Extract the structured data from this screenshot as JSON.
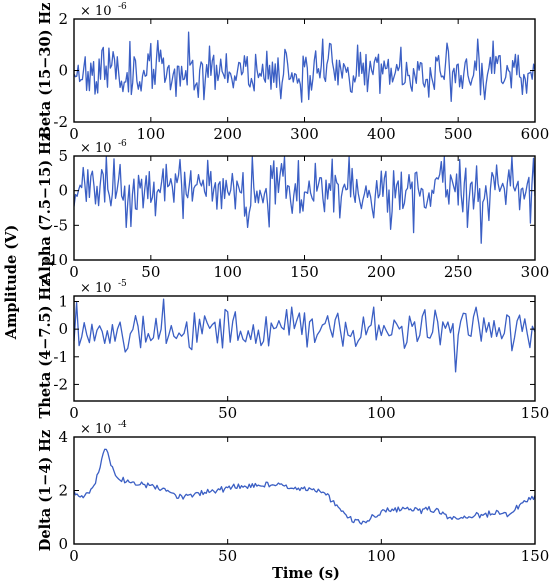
{
  "figure": {
    "ylabel": "Amplitude (V)",
    "xlabel": "Time (s)"
  },
  "chart_data": [
    {
      "type": "line",
      "ylabel": "Beta (15−30) Hz",
      "exponent_base": "× 10",
      "exponent_power": "-6",
      "xlim": [
        0,
        600
      ],
      "ylim": [
        -2,
        2
      ],
      "xticks": [
        "0",
        "100",
        "200",
        "300",
        "400",
        "500",
        "600"
      ],
      "yticks": [
        "-2",
        "0",
        "2"
      ],
      "grid": false,
      "series_color": "#3b5fc4",
      "kind": "noise",
      "points": 330,
      "amplitude": 0.75,
      "seed": 11
    },
    {
      "type": "line",
      "ylabel": "Alpha (7.5−15) Hz",
      "exponent_base": "× 10",
      "exponent_power": "-6",
      "xlim": [
        0,
        300
      ],
      "ylim": [
        -10,
        5
      ],
      "xticks": [
        "0",
        "50",
        "100",
        "150",
        "200",
        "250",
        "300"
      ],
      "yticks": [
        "-10",
        "-5",
        "0",
        "5"
      ],
      "grid": false,
      "series_color": "#3b5fc4",
      "kind": "noise",
      "points": 300,
      "amplitude": 3.2,
      "seed": 23
    },
    {
      "type": "line",
      "ylabel": "Theta (4−7.5) Hz",
      "exponent_base": "× 10",
      "exponent_power": "-5",
      "xlim": [
        0,
        150
      ],
      "ylim": [
        -2.6,
        1.2
      ],
      "xticks": [
        "0",
        "50",
        "100",
        "150"
      ],
      "yticks": [
        "-2",
        "-1",
        "0",
        "1"
      ],
      "grid": false,
      "series_color": "#3b5fc4",
      "kind": "noise",
      "points": 180,
      "amplitude": 0.6,
      "seed": 37
    },
    {
      "type": "line",
      "ylabel": "Delta (1−4) Hz",
      "exponent_base": "× 10",
      "exponent_power": "-4",
      "xlim": [
        0,
        150
      ],
      "ylim": [
        0,
        4
      ],
      "xticks": [
        "0",
        "50",
        "100",
        "150"
      ],
      "yticks": [
        "0",
        "2",
        "4"
      ],
      "grid": false,
      "series_color": "#3b5fc4",
      "kind": "trend",
      "trend": {
        "x": [
          0,
          3,
          5,
          7,
          9,
          10,
          11,
          12,
          14,
          18,
          22,
          26,
          30,
          34,
          38,
          42,
          46,
          50,
          56,
          62,
          68,
          74,
          80,
          84,
          88,
          90,
          92,
          94,
          96,
          100,
          106,
          112,
          118,
          122,
          126,
          132,
          138,
          142,
          146,
          150
        ],
        "y": [
          1.9,
          1.8,
          1.9,
          2.3,
          3.1,
          3.6,
          3.4,
          3.0,
          2.5,
          2.3,
          2.2,
          2.15,
          2.0,
          1.75,
          1.8,
          1.9,
          2.0,
          2.1,
          2.15,
          2.2,
          2.2,
          2.1,
          2.0,
          1.6,
          1.15,
          0.95,
          0.85,
          0.75,
          0.9,
          1.2,
          1.3,
          1.3,
          1.25,
          1.0,
          0.95,
          1.1,
          1.15,
          1.1,
          1.5,
          1.85
        ]
      },
      "jitter": 0.06,
      "seed": 51
    }
  ]
}
